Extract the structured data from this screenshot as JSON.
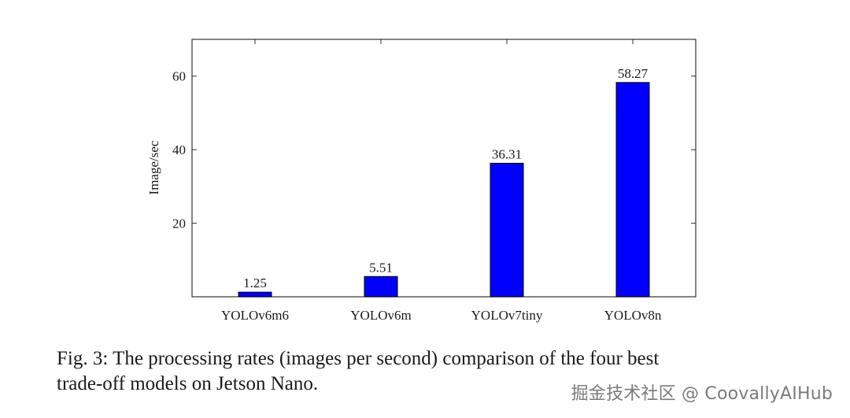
{
  "chart_data": {
    "type": "bar",
    "categories": [
      "YOLOv6m6",
      "YOLOv6m",
      "YOLOv7tiny",
      "YOLOv8n"
    ],
    "values": [
      1.25,
      5.51,
      36.31,
      58.27
    ],
    "value_labels": [
      "1.25",
      "5.51",
      "36.31",
      "58.27"
    ],
    "title": "",
    "xlabel": "",
    "ylabel": "Image/sec",
    "ylim": [
      0,
      70
    ],
    "yticks": [
      20,
      40,
      60
    ],
    "ytick_labels": [
      "20",
      "40",
      "60"
    ],
    "grid": false,
    "bar_color": "#0000ff"
  },
  "caption": {
    "line1": "Fig. 3: The processing rates (images per second) comparison of the four best",
    "line2": "trade-off models on Jetson Nano."
  },
  "watermark": "掘金技术社区 @ CoovallyAIHub"
}
